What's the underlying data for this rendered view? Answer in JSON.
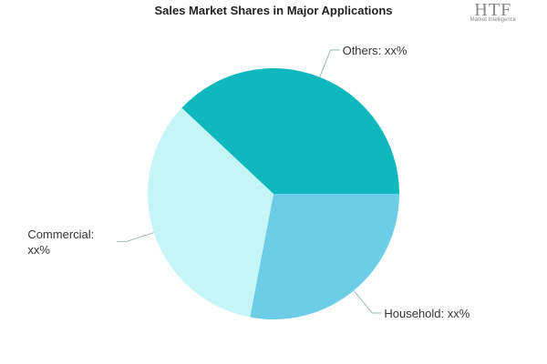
{
  "chart_data": {
    "type": "pie",
    "title": "Sales Market Shares in Major Applications",
    "categories": [
      "Household: xx%",
      "Commercial: xx%",
      "Others: xx%"
    ],
    "values": [
      28,
      34,
      38
    ],
    "colors": [
      "#6dcde6",
      "#c5f5f7",
      "#0fb8bd"
    ],
    "logo": {
      "text": "HTF",
      "subtext": "Market Intelligence"
    }
  }
}
